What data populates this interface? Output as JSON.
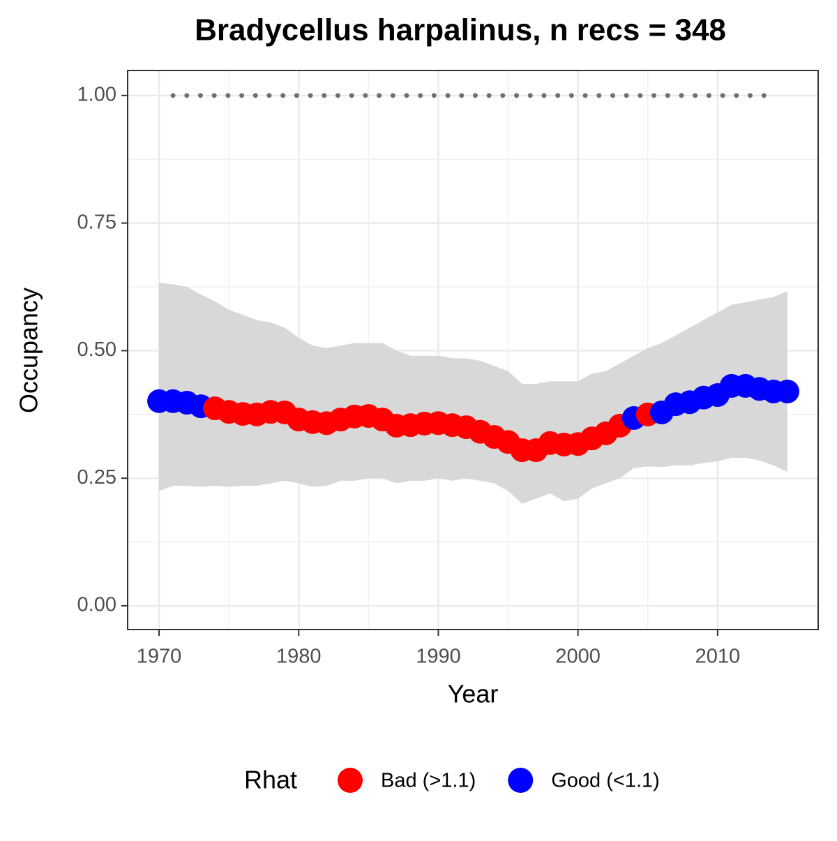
{
  "chart_data": {
    "type": "line",
    "title": "Bradycellus harpalinus, n recs = 348",
    "x_label": "Year",
    "y_label": "Occupancy",
    "legend_title": "Rhat",
    "legend_position": "bottom",
    "grid": true,
    "x": [
      1970,
      1971,
      1972,
      1973,
      1974,
      1975,
      1976,
      1977,
      1978,
      1979,
      1980,
      1981,
      1982,
      1983,
      1984,
      1985,
      1986,
      1987,
      1988,
      1989,
      1990,
      1991,
      1992,
      1993,
      1994,
      1995,
      1996,
      1997,
      1998,
      1999,
      2000,
      2001,
      2002,
      2003,
      2004,
      2005,
      2006,
      2007,
      2008,
      2009,
      2010,
      2011,
      2012,
      2013,
      2014,
      2015
    ],
    "series": [
      {
        "name": "Bad (>1.1)",
        "color": "#ff0000",
        "values": [
          null,
          null,
          null,
          null,
          0.387,
          0.38,
          0.376,
          0.375,
          0.38,
          0.379,
          0.365,
          0.36,
          0.358,
          0.365,
          0.371,
          0.372,
          0.365,
          0.353,
          0.354,
          0.357,
          0.358,
          0.354,
          0.35,
          0.341,
          0.331,
          0.321,
          0.305,
          0.305,
          0.319,
          0.316,
          0.317,
          0.328,
          0.338,
          0.353,
          null,
          0.375,
          null,
          null,
          null,
          null,
          null,
          null,
          null,
          null,
          null,
          null
        ]
      },
      {
        "name": "Good (<1.1)",
        "color": "#0000ff",
        "values": [
          0.401,
          0.401,
          0.398,
          0.391,
          null,
          null,
          null,
          null,
          null,
          null,
          null,
          null,
          null,
          null,
          null,
          null,
          null,
          null,
          null,
          null,
          null,
          null,
          null,
          null,
          null,
          null,
          null,
          null,
          null,
          null,
          null,
          null,
          null,
          null,
          0.368,
          null,
          0.379,
          0.395,
          0.399,
          0.408,
          0.413,
          0.431,
          0.431,
          0.425,
          0.42,
          0.42
        ]
      }
    ],
    "ribbon": {
      "color": "#d6d6d6",
      "upper": [
        0.633,
        0.63,
        0.625,
        0.61,
        0.597,
        0.58,
        0.57,
        0.56,
        0.555,
        0.545,
        0.525,
        0.51,
        0.505,
        0.51,
        0.515,
        0.515,
        0.515,
        0.5,
        0.49,
        0.49,
        0.49,
        0.485,
        0.485,
        0.48,
        0.47,
        0.46,
        0.435,
        0.435,
        0.44,
        0.44,
        0.44,
        0.455,
        0.46,
        0.475,
        0.49,
        0.505,
        0.515,
        0.53,
        0.545,
        0.56,
        0.575,
        0.59,
        0.595,
        0.6,
        0.605,
        0.617
      ],
      "lower": [
        0.225,
        0.235,
        0.235,
        0.233,
        0.235,
        0.233,
        0.235,
        0.235,
        0.24,
        0.245,
        0.24,
        0.233,
        0.235,
        0.245,
        0.245,
        0.25,
        0.25,
        0.24,
        0.245,
        0.245,
        0.25,
        0.245,
        0.25,
        0.245,
        0.24,
        0.225,
        0.2,
        0.21,
        0.22,
        0.205,
        0.21,
        0.23,
        0.24,
        0.25,
        0.27,
        0.273,
        0.272,
        0.275,
        0.275,
        0.28,
        0.283,
        0.29,
        0.29,
        0.285,
        0.275,
        0.262
      ]
    },
    "dotted_line": {
      "x": [
        1971,
        2014
      ],
      "value": 1,
      "color": "#707070"
    },
    "xlim": [
      1967.75,
      2017.2
    ],
    "ylim": [
      -0.0465,
      1.049
    ],
    "xticks": [
      1970,
      1980,
      1990,
      2000,
      2010
    ],
    "yticks": [
      {
        "value": 0,
        "label": "0.00"
      },
      {
        "value": 0.25,
        "label": "0.25"
      },
      {
        "value": 0.5,
        "label": "0.50"
      },
      {
        "value": 0.75,
        "label": "0.75"
      },
      {
        "value": 1,
        "label": "1.00"
      }
    ]
  }
}
